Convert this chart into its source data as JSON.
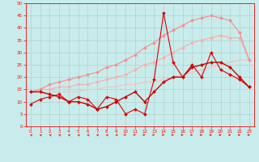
{
  "background_color": "#c8ecec",
  "grid_color": "#b0c8c8",
  "xlim": [
    -0.5,
    23.5
  ],
  "ylim": [
    0,
    50
  ],
  "yticks": [
    0,
    5,
    10,
    15,
    20,
    25,
    30,
    35,
    40,
    45,
    50
  ],
  "xticks": [
    0,
    1,
    2,
    3,
    4,
    5,
    6,
    7,
    8,
    9,
    10,
    11,
    12,
    13,
    14,
    15,
    16,
    17,
    18,
    19,
    20,
    21,
    22,
    23
  ],
  "series": [
    {
      "x": [
        0,
        1,
        2,
        3,
        4,
        5,
        6,
        7,
        8,
        9,
        10,
        11,
        12,
        13,
        14,
        15,
        16,
        17,
        18,
        19,
        20,
        21,
        22,
        23
      ],
      "y": [
        14,
        14,
        14,
        14,
        14,
        14,
        15,
        15,
        16,
        16,
        17,
        17,
        18,
        18,
        19,
        20,
        21,
        22,
        23,
        24,
        25,
        26,
        27,
        27
      ],
      "color": "#ffbbbb",
      "linewidth": 0.8,
      "marker": null,
      "zorder": 2
    },
    {
      "x": [
        0,
        1,
        2,
        3,
        4,
        5,
        6,
        7,
        8,
        9,
        10,
        11,
        12,
        13,
        14,
        15,
        16,
        17,
        18,
        19,
        20,
        21,
        22,
        23
      ],
      "y": [
        14,
        15,
        15,
        16,
        16,
        17,
        17,
        18,
        19,
        20,
        21,
        23,
        25,
        26,
        28,
        30,
        32,
        34,
        35,
        36,
        37,
        36,
        36,
        27
      ],
      "color": "#ffaaaa",
      "linewidth": 0.8,
      "marker": "D",
      "markersize": 2.0,
      "zorder": 2
    },
    {
      "x": [
        0,
        1,
        2,
        3,
        4,
        5,
        6,
        7,
        8,
        9,
        10,
        11,
        12,
        13,
        14,
        15,
        16,
        17,
        18,
        19,
        20,
        21,
        22,
        23
      ],
      "y": [
        14,
        15,
        17,
        18,
        19,
        20,
        21,
        22,
        24,
        25,
        27,
        29,
        32,
        34,
        37,
        39,
        41,
        43,
        44,
        45,
        44,
        43,
        38,
        27
      ],
      "color": "#ff8888",
      "linewidth": 0.8,
      "marker": "D",
      "markersize": 2.0,
      "zorder": 3
    },
    {
      "x": [
        0,
        1,
        2,
        3,
        4,
        5,
        6,
        7,
        8,
        9,
        10,
        11,
        12,
        13,
        14,
        15,
        16,
        17,
        18,
        19,
        20,
        21,
        22,
        23
      ],
      "y": [
        9,
        11,
        12,
        13,
        10,
        12,
        11,
        7,
        12,
        11,
        5,
        7,
        5,
        19,
        46,
        26,
        20,
        25,
        20,
        30,
        23,
        21,
        19,
        16
      ],
      "color": "#dd0000",
      "linewidth": 0.8,
      "marker": "D",
      "markersize": 2.0,
      "zorder": 4
    },
    {
      "x": [
        0,
        1,
        2,
        3,
        4,
        5,
        6,
        7,
        8,
        9,
        10,
        11,
        12,
        13,
        14,
        15,
        16,
        17,
        18,
        19,
        20,
        21,
        22,
        23
      ],
      "y": [
        14,
        14,
        13,
        12,
        10,
        10,
        9,
        7,
        8,
        10,
        12,
        14,
        10,
        14,
        18,
        20,
        20,
        24,
        25,
        26,
        26,
        24,
        20,
        16
      ],
      "color": "#cc0000",
      "linewidth": 1.0,
      "marker": "D",
      "markersize": 2.0,
      "zorder": 5
    }
  ],
  "arrow_angles": [
    225,
    230,
    230,
    235,
    235,
    240,
    240,
    245,
    245,
    250,
    50,
    55,
    55,
    60,
    65,
    65,
    70,
    70,
    75,
    80,
    80,
    85,
    90,
    90
  ]
}
